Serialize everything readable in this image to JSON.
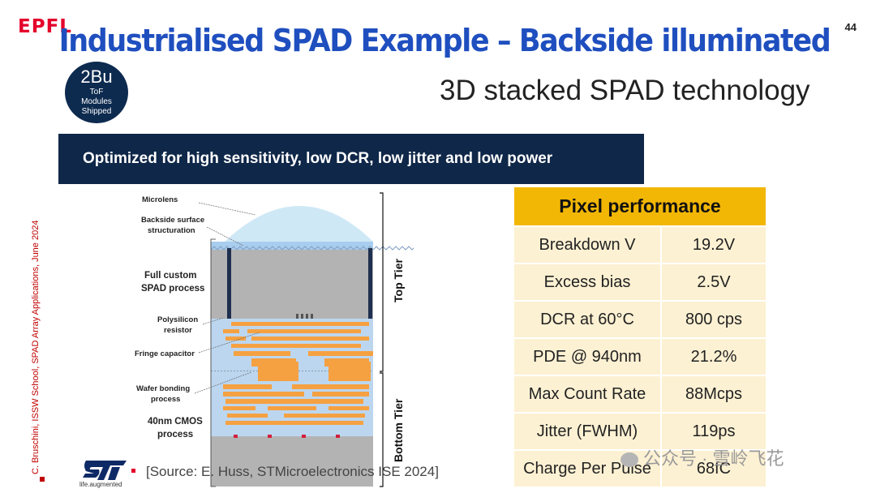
{
  "header": {
    "logo": "EPFL",
    "slide_number": "44",
    "title": "Industrialised SPAD Example – Backside illuminated",
    "subtitle": "3D stacked SPAD technology"
  },
  "badge": {
    "value": "2Bu",
    "caption_lines": [
      "ToF",
      "Modules",
      "Shipped"
    ]
  },
  "banner": {
    "text": "Optimized for high sensitivity, low DCR, low jitter and low power"
  },
  "diagram": {
    "labels": {
      "microlens": "Microlens",
      "backside_1": "Backside surface",
      "backside_2": "structuration",
      "spad_1": "Full custom",
      "spad_2": "SPAD process",
      "poly_1": "Polysilicon",
      "poly_2": "resistor",
      "fringe": "Fringe capacitor",
      "wafer_1": "Wafer bonding",
      "wafer_2": "process",
      "cmos_1": "40nm CMOS",
      "cmos_2": "process"
    },
    "top_tier": "Top Tier",
    "bottom_tier": "Bottom Tier"
  },
  "table": {
    "title": "Pixel performance",
    "rows": [
      {
        "param": "Breakdown V",
        "value": "19.2V"
      },
      {
        "param": "Excess bias",
        "value": "2.5V"
      },
      {
        "param": "DCR at 60°C",
        "value": "800 cps"
      },
      {
        "param": "PDE @ 940nm",
        "value": "21.2%"
      },
      {
        "param": "Max Count Rate",
        "value": "88Mcps"
      },
      {
        "param": "Jitter (FWHM)",
        "value": "119ps"
      },
      {
        "param": "Charge Per Pulse",
        "value": "68fC"
      }
    ]
  },
  "footer": {
    "side_credit": "C. Bruschini, ISSW School, SPAD Array Applications, June 2024",
    "st_tagline": "life.augmented",
    "source": "[Source: E. Huss, STMicroelectronics ISE 2024]",
    "watermark": "公众号 · 雪岭飞花"
  },
  "colors": {
    "title_blue": "#1f4fbf",
    "banner_navy": "#0f2748",
    "table_gold": "#f2b705",
    "table_cream": "#fdf1d3",
    "epfl_red": "#e4002b",
    "metal_orange": "#f5a142"
  }
}
